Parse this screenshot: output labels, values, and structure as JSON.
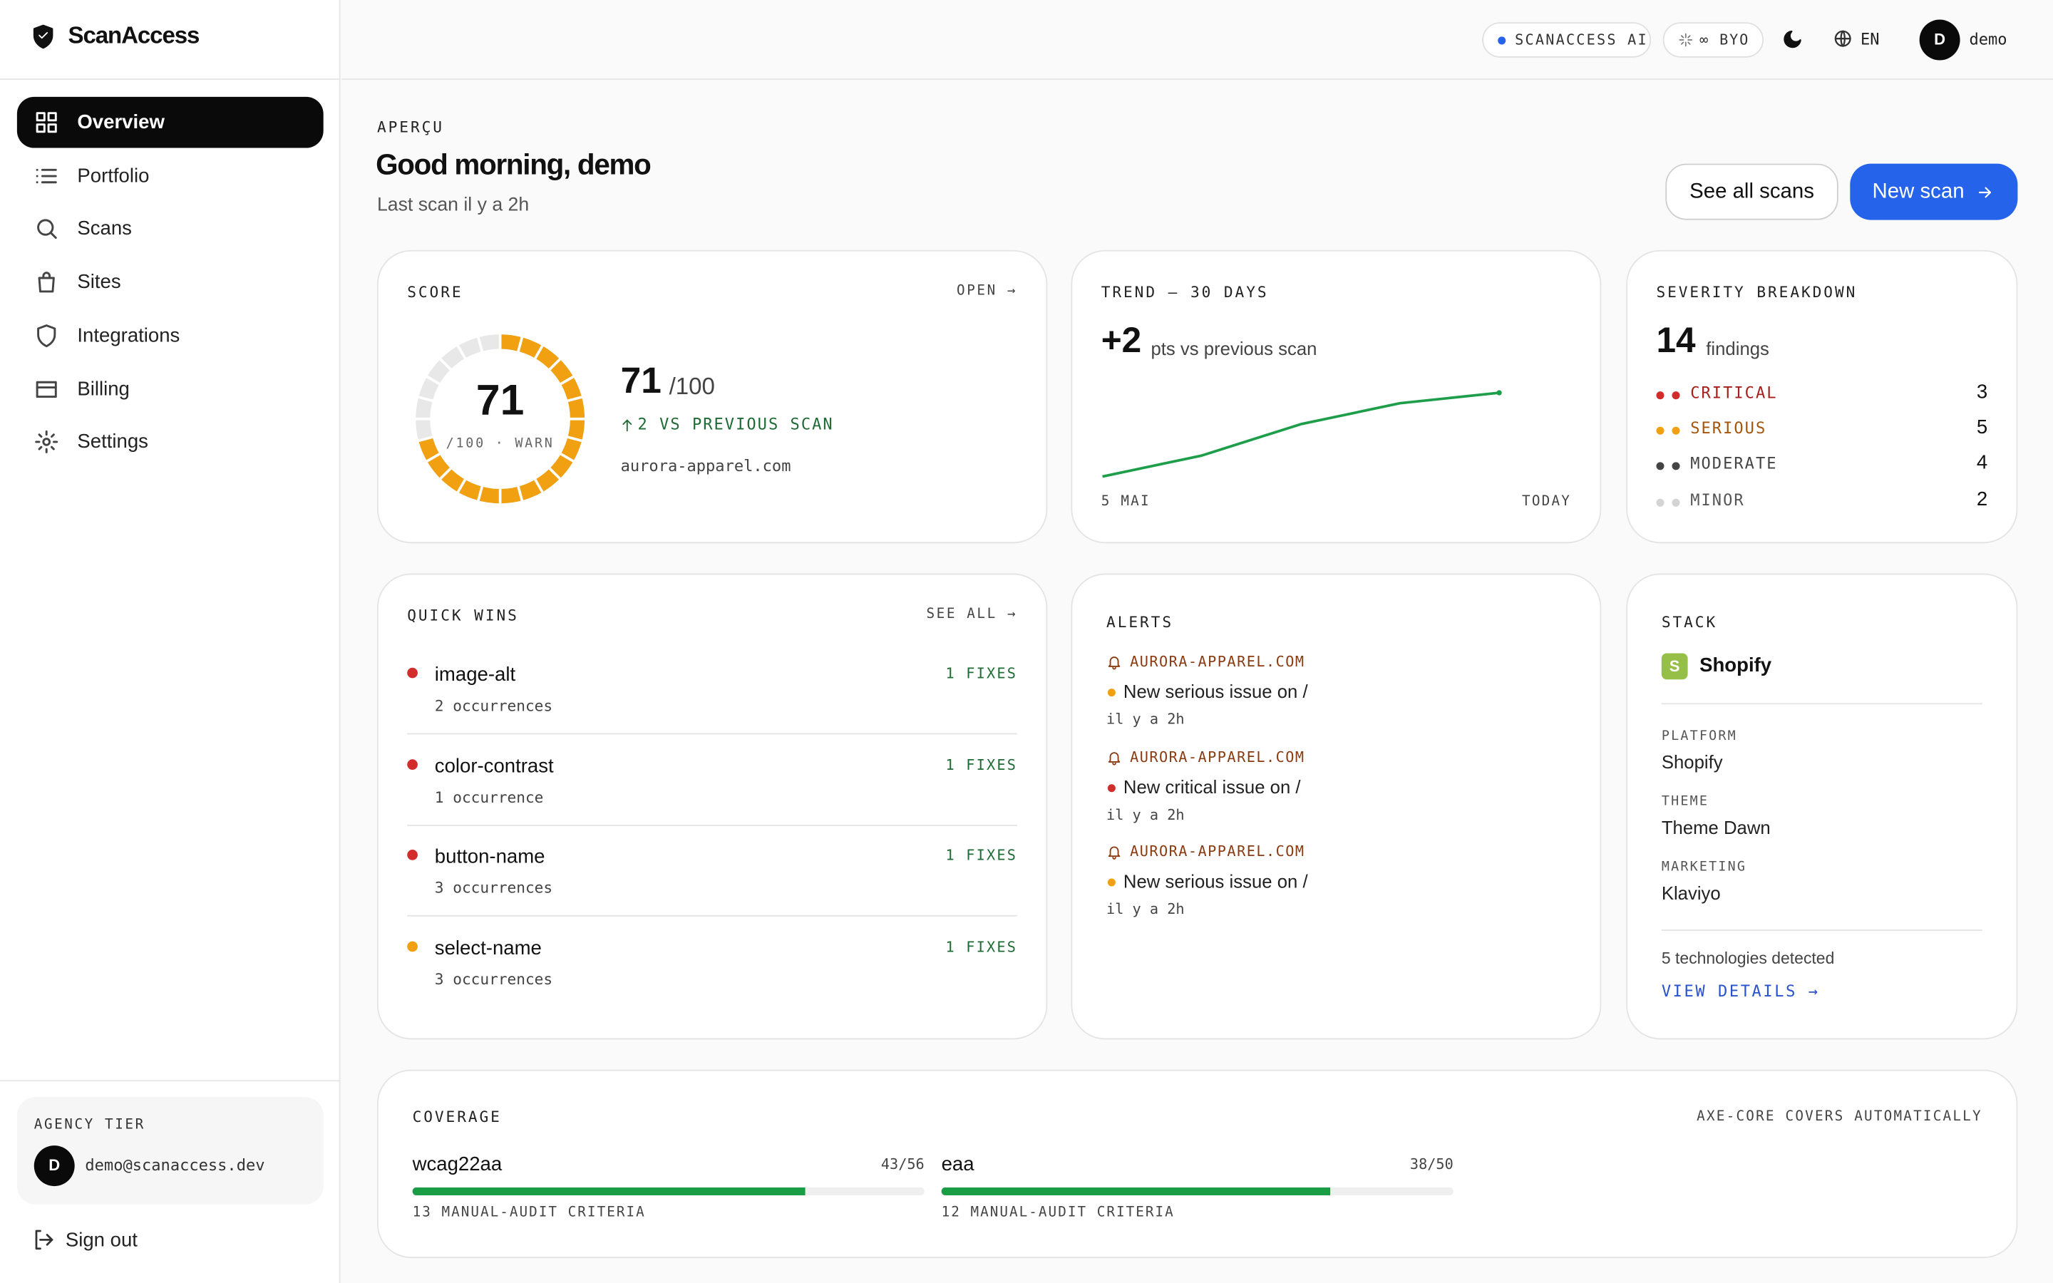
{
  "sidebar": {
    "brand": "ScanAccess",
    "nav": [
      "Overview",
      "Portfolio",
      "Scans",
      "Sites",
      "Integrations",
      "Billing",
      "Settings"
    ],
    "tier": "AGENCY TIER",
    "avatar": "D",
    "email": "demo@scanaccess.dev",
    "sign_out": "Sign out"
  },
  "topbar": {
    "ai": "SCANACCESS AI",
    "byo": "∞ BYO",
    "lang": "EN",
    "avatar": "D",
    "user": "demo"
  },
  "header": {
    "eyebrow": "APERÇU",
    "title": "Good morning, demo",
    "subtitle": "Last scan il y a 2h",
    "buttons": [
      "See all scans",
      "New scan"
    ]
  },
  "score": {
    "title": "SCORE",
    "link": "OPEN →",
    "value": 71,
    "max": 100,
    "ring_label": "/100 · WARN",
    "max_label": "/100",
    "delta": "2 VS PREVIOUS SCAN",
    "site": "aurora-apparel.com",
    "color": "#f0a010"
  },
  "trend": {
    "title": "TREND — 30 DAYS",
    "delta": "+2",
    "delta_text": "pts vs previous scan",
    "values": [
      63,
      65,
      68,
      70,
      71
    ],
    "ylim": [
      62,
      72
    ],
    "x_labels": [
      "5 MAI",
      "TODAY"
    ],
    "color": "#1e9e4a"
  },
  "severity": {
    "title": "SEVERITY BREAKDOWN",
    "total": 14,
    "total_label": "findings",
    "items": [
      {
        "name": "CRITICAL",
        "count": 3,
        "color": "#d12d2d",
        "text_color": "#a3201d"
      },
      {
        "name": "SERIOUS",
        "count": 5,
        "color": "#f0a010",
        "text_color": "#a4560c"
      },
      {
        "name": "MODERATE",
        "count": 4,
        "color": "#444444",
        "text_color": "#444444"
      },
      {
        "name": "MINOR",
        "count": 2,
        "color": "#d4d4d4",
        "text_color": "#555555"
      }
    ]
  },
  "quick_wins": {
    "title": "QUICK WINS",
    "link": "SEE ALL →",
    "items": [
      {
        "rule": "image-alt",
        "occurrences": "2 occurrences",
        "fixes": "1 FIXES",
        "color": "#d12d2d"
      },
      {
        "rule": "color-contrast",
        "occurrences": "1 occurrence",
        "fixes": "1 FIXES",
        "color": "#d12d2d"
      },
      {
        "rule": "button-name",
        "occurrences": "3 occurrences",
        "fixes": "1 FIXES",
        "color": "#d12d2d"
      },
      {
        "rule": "select-name",
        "occurrences": "3 occurrences",
        "fixes": "1 FIXES",
        "color": "#f0a010"
      }
    ]
  },
  "alerts": {
    "title": "ALERTS",
    "items": [
      {
        "site": "AURORA-APPAREL.COM",
        "message": "New serious issue on /",
        "time": "il y a 2h",
        "color": "#f0a010"
      },
      {
        "site": "AURORA-APPAREL.COM",
        "message": "New critical issue on /",
        "time": "il y a 2h",
        "color": "#d12d2d"
      },
      {
        "site": "AURORA-APPAREL.COM",
        "message": "New serious issue on /",
        "time": "il y a 2h",
        "color": "#f0a010"
      }
    ]
  },
  "stack": {
    "title": "STACK",
    "badge": "S",
    "name": "Shopify",
    "fields": [
      {
        "label": "PLATFORM",
        "value": "Shopify"
      },
      {
        "label": "THEME",
        "value": "Theme Dawn"
      },
      {
        "label": "MARKETING",
        "value": "Klaviyo"
      }
    ],
    "detected": "5 technologies detected",
    "link": "VIEW DETAILS →"
  },
  "coverage": {
    "title": "COVERAGE",
    "note": "AXE-CORE COVERS AUTOMATICALLY",
    "color": "#1a9c45",
    "items": [
      {
        "name": "wcag22aa",
        "passed": 43,
        "total": 56,
        "label": "43/56",
        "manual": "13 MANUAL-AUDIT CRITERIA"
      },
      {
        "name": "eaa",
        "passed": 38,
        "total": 50,
        "label": "38/50",
        "manual": "12 MANUAL-AUDIT CRITERIA"
      }
    ]
  }
}
